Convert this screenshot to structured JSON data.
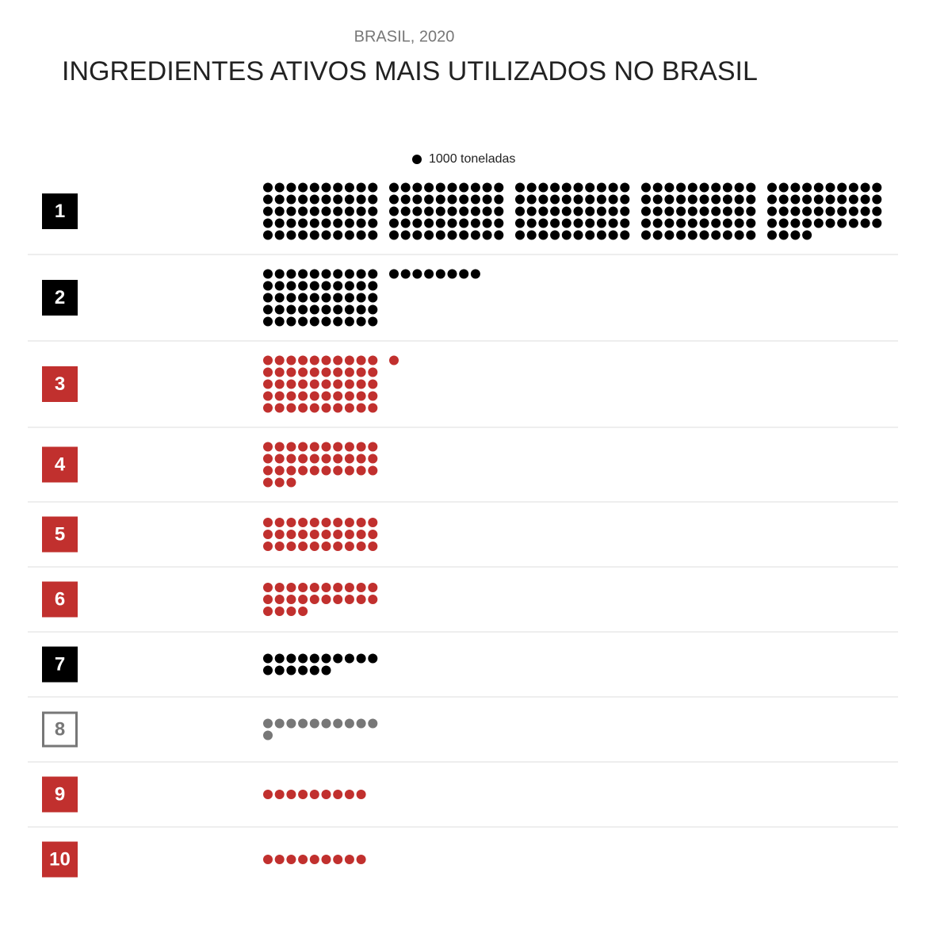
{
  "chart_data": {
    "type": "unit",
    "subtitle": "BRASIL, 2020",
    "title": "INGREDIENTES ATIVOS MAIS UTILIZADOS NO BRASIL",
    "legend": {
      "label": "1000 toneladas",
      "color": "#000000"
    },
    "rows": [
      {
        "rank": "1",
        "value": 244,
        "color": "#000000",
        "box": "filled"
      },
      {
        "rank": "2",
        "value": 58,
        "color": "#000000",
        "box": "filled"
      },
      {
        "rank": "3",
        "value": 51,
        "color": "#c1302e",
        "box": "filled"
      },
      {
        "rank": "4",
        "value": 33,
        "color": "#c1302e",
        "box": "filled"
      },
      {
        "rank": "5",
        "value": 30,
        "color": "#c1302e",
        "box": "filled"
      },
      {
        "rank": "6",
        "value": 24,
        "color": "#c1302e",
        "box": "filled"
      },
      {
        "rank": "7",
        "value": 16,
        "color": "#000000",
        "box": "filled"
      },
      {
        "rank": "8",
        "value": 11,
        "color": "#777777",
        "box": "outline"
      },
      {
        "rank": "9",
        "value": 9,
        "color": "#c1302e",
        "box": "filled"
      },
      {
        "rank": "10",
        "value": 9,
        "color": "#c1302e",
        "box": "filled"
      }
    ]
  }
}
